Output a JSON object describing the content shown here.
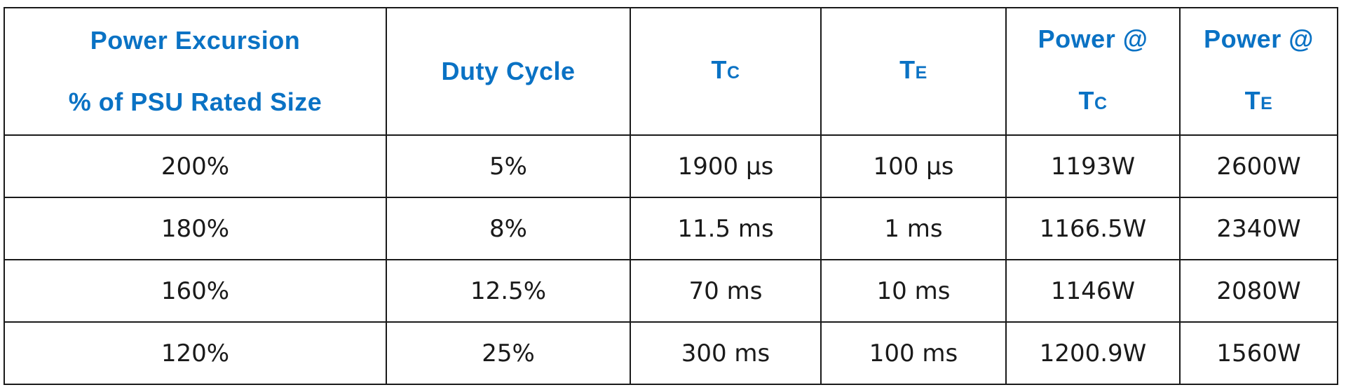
{
  "header": {
    "power_excursion": [
      "Power Excursion",
      "% of PSU Rated Size"
    ],
    "duty_cycle": "Duty Cycle",
    "tc": {
      "main": "T",
      "sub": "C"
    },
    "te": {
      "main": "T",
      "sub": "E"
    },
    "power_at_tc": {
      "line1": "Power @",
      "main": "T",
      "sub": "C"
    },
    "power_at_te": {
      "line1": "Power @",
      "main": "T",
      "sub": "E"
    }
  },
  "rows": [
    {
      "excursion": "200%",
      "duty_cycle": "5%",
      "tc": "1900 μs",
      "te": "100 μs",
      "power_tc": "1193W",
      "power_te": "2600W"
    },
    {
      "excursion": "180%",
      "duty_cycle": "8%",
      "tc": "11.5 ms",
      "te": "1 ms",
      "power_tc": "1166.5W",
      "power_te": "2340W"
    },
    {
      "excursion": "160%",
      "duty_cycle": "12.5%",
      "tc": "70 ms",
      "te": "10 ms",
      "power_tc": "1146W",
      "power_te": "2080W"
    },
    {
      "excursion": "120%",
      "duty_cycle": "25%",
      "tc": "300 ms",
      "te": "100 ms",
      "power_tc": "1200.9W",
      "power_te": "1560W"
    }
  ],
  "colors": {
    "header_text": "#0a72c4",
    "body_text": "#1a1a1a",
    "border": "#1a1a1a",
    "background": "#ffffff"
  }
}
